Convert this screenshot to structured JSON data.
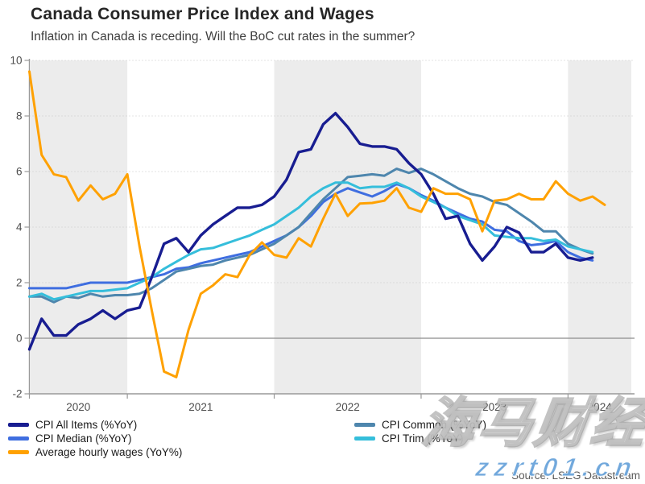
{
  "title": "Canada Consumer Price Index and Wages",
  "subtitle": "Inflation in Canada is receding. Will the BoC cut rates in the summer?",
  "source_note": "Source: LSEG Datastream",
  "watermark": {
    "cjk_text": "海马财经",
    "site_text": "zzrt01.cn"
  },
  "colors": {
    "cpi_all_items": "#181d91",
    "cpi_median": "#3f6ee0",
    "wages": "#ffa101",
    "cpi_common": "#4e86ad",
    "cpi_trim": "#35bedb",
    "band": "#ececec",
    "grid_dotted": "#c8c8c8",
    "zero_line": "#8c8c8c",
    "axis": "#999999",
    "tick_text": "#4d4d4d"
  },
  "legend": {
    "items": [
      {
        "label": "CPI All Items (%YoY)",
        "color": "#181d91",
        "column": 0,
        "row": 0
      },
      {
        "label": "CPI Median (%YoY)",
        "color": "#3f6ee0",
        "column": 0,
        "row": 1
      },
      {
        "label": "Average hourly wages (YoY%)",
        "color": "#ffa101",
        "column": 0,
        "row": 2
      },
      {
        "label": "CPI Common (%YoY)",
        "color": "#4e86ad",
        "column": 1,
        "row": 0
      },
      {
        "label": "CPI Trim (%YoY)",
        "color": "#35bedb",
        "column": 1,
        "row": 1
      }
    ]
  },
  "chart_data": {
    "type": "line",
    "title": "Canada Consumer Price Index and Wages",
    "xlabel": "",
    "ylabel": "",
    "ylim": [
      -2,
      10
    ],
    "y_ticks": [
      -2,
      0,
      2,
      4,
      6,
      8,
      10
    ],
    "x_tick_labels": [
      "2020",
      "2021",
      "2022",
      "2023",
      "2024"
    ],
    "grid": "dotted-horizontal",
    "legend_position": "bottom",
    "shaded_year_bands": [
      "2020",
      "2022",
      "2024"
    ],
    "months": [
      "2020-05",
      "2020-06",
      "2020-07",
      "2020-08",
      "2020-09",
      "2020-10",
      "2020-11",
      "2020-12",
      "2021-01",
      "2021-02",
      "2021-03",
      "2021-04",
      "2021-05",
      "2021-06",
      "2021-07",
      "2021-08",
      "2021-09",
      "2021-10",
      "2021-11",
      "2021-12",
      "2022-01",
      "2022-02",
      "2022-03",
      "2022-04",
      "2022-05",
      "2022-06",
      "2022-07",
      "2022-08",
      "2022-09",
      "2022-10",
      "2022-11",
      "2022-12",
      "2023-01",
      "2023-02",
      "2023-03",
      "2023-04",
      "2023-05",
      "2023-06",
      "2023-07",
      "2023-08",
      "2023-09",
      "2023-10",
      "2023-11",
      "2023-12",
      "2024-01",
      "2024-02",
      "2024-03",
      "2024-04"
    ],
    "draw_order": [
      1,
      3,
      4,
      0,
      2
    ],
    "series": [
      {
        "name": "CPI All Items (%YoY)",
        "color": "#181d91",
        "width": 3.4,
        "values": [
          -0.4,
          0.7,
          0.1,
          0.1,
          0.5,
          0.7,
          1.0,
          0.7,
          1.0,
          1.1,
          2.2,
          3.4,
          3.6,
          3.1,
          3.7,
          4.1,
          4.4,
          4.7,
          4.7,
          4.8,
          5.1,
          5.7,
          6.7,
          6.8,
          7.7,
          8.1,
          7.6,
          7.0,
          6.9,
          6.9,
          6.8,
          6.3,
          5.9,
          5.2,
          4.3,
          4.4,
          3.4,
          2.8,
          3.3,
          4.0,
          3.8,
          3.1,
          3.1,
          3.4,
          2.9,
          2.8,
          2.9,
          null
        ]
      },
      {
        "name": "CPI Median (%YoY)",
        "color": "#3f6ee0",
        "width": 3,
        "values": [
          1.8,
          1.8,
          1.8,
          1.8,
          1.9,
          2.0,
          2.0,
          2.0,
          2.0,
          2.1,
          2.2,
          2.3,
          2.5,
          2.55,
          2.7,
          2.8,
          2.9,
          3.0,
          3.1,
          3.3,
          3.5,
          3.7,
          4.0,
          4.4,
          4.9,
          5.2,
          5.4,
          5.25,
          5.1,
          5.3,
          5.55,
          5.4,
          5.15,
          4.95,
          4.7,
          4.5,
          4.3,
          4.2,
          3.9,
          3.85,
          3.5,
          3.35,
          3.4,
          3.5,
          3.1,
          2.9,
          2.8,
          null
        ]
      },
      {
        "name": "Average hourly wages (YoY%)",
        "color": "#ffa101",
        "width": 3,
        "values": [
          9.6,
          6.6,
          5.9,
          5.8,
          4.95,
          5.5,
          5.0,
          5.2,
          5.9,
          3.3,
          1.0,
          -1.2,
          -1.4,
          0.3,
          1.6,
          1.9,
          2.3,
          2.2,
          3.0,
          3.45,
          3.0,
          2.9,
          3.6,
          3.3,
          4.3,
          5.2,
          4.4,
          4.85,
          4.87,
          4.95,
          5.4,
          4.7,
          4.55,
          5.4,
          5.2,
          5.2,
          5.0,
          3.85,
          4.95,
          5.0,
          5.2,
          5.0,
          5.0,
          5.65,
          5.2,
          4.95,
          5.1,
          4.8
        ]
      },
      {
        "name": "CPI Common (%YoY)",
        "color": "#4e86ad",
        "width": 3,
        "values": [
          1.5,
          1.5,
          1.3,
          1.5,
          1.45,
          1.6,
          1.5,
          1.55,
          1.55,
          1.6,
          1.8,
          2.1,
          2.4,
          2.5,
          2.6,
          2.65,
          2.8,
          2.9,
          3.0,
          3.2,
          3.4,
          3.7,
          4.0,
          4.5,
          5.0,
          5.4,
          5.8,
          5.85,
          5.9,
          5.85,
          6.1,
          5.95,
          6.1,
          5.9,
          5.65,
          5.4,
          5.2,
          5.1,
          4.9,
          4.8,
          4.5,
          4.2,
          3.85,
          3.85,
          3.4,
          3.2,
          3.05,
          null
        ]
      },
      {
        "name": "CPI Trim (%YoY)",
        "color": "#35bedb",
        "width": 3,
        "values": [
          1.5,
          1.6,
          1.4,
          1.5,
          1.6,
          1.7,
          1.7,
          1.75,
          1.8,
          2.0,
          2.2,
          2.5,
          2.75,
          3.0,
          3.2,
          3.25,
          3.4,
          3.55,
          3.7,
          3.9,
          4.1,
          4.4,
          4.7,
          5.1,
          5.4,
          5.6,
          5.6,
          5.4,
          5.45,
          5.45,
          5.6,
          5.4,
          5.1,
          4.9,
          4.7,
          4.4,
          4.25,
          4.1,
          3.7,
          3.65,
          3.6,
          3.6,
          3.5,
          3.55,
          3.3,
          3.2,
          3.1,
          null
        ]
      }
    ]
  }
}
